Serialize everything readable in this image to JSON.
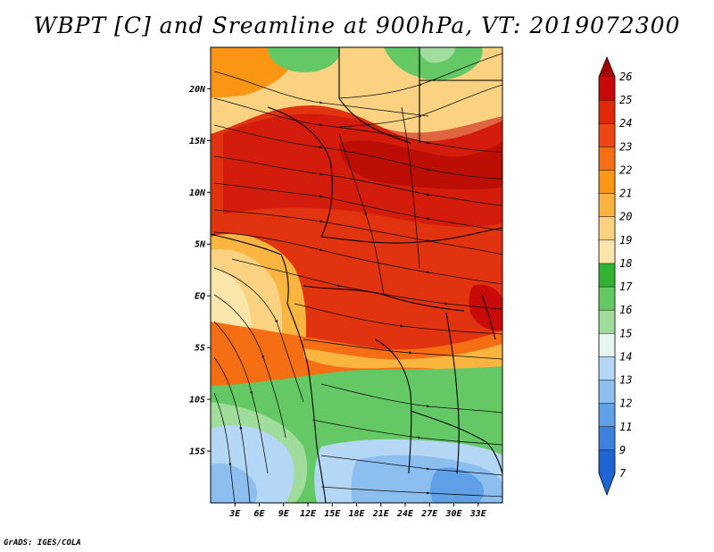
{
  "title": "WBPT [C] and Sreamline at 900hPa, VT: 2019072300",
  "footer": "GrADS: IGES/COLA",
  "map": {
    "lon_range": [
      0,
      36
    ],
    "lat_range": [
      -20,
      24
    ],
    "lat_ticks": [
      {
        "value": 20,
        "label": "20N"
      },
      {
        "value": 15,
        "label": "15N"
      },
      {
        "value": 10,
        "label": "10N"
      },
      {
        "value": 5,
        "label": "5N"
      },
      {
        "value": 0,
        "label": "EQ"
      },
      {
        "value": -5,
        "label": "5S"
      },
      {
        "value": -10,
        "label": "10S"
      },
      {
        "value": -15,
        "label": "15S"
      }
    ],
    "lon_ticks": [
      {
        "value": 3,
        "label": "3E"
      },
      {
        "value": 6,
        "label": "6E"
      },
      {
        "value": 9,
        "label": "9E"
      },
      {
        "value": 12,
        "label": "12E"
      },
      {
        "value": 15,
        "label": "15E"
      },
      {
        "value": 18,
        "label": "18E"
      },
      {
        "value": 21,
        "label": "21E"
      },
      {
        "value": 24,
        "label": "24E"
      },
      {
        "value": 27,
        "label": "27E"
      },
      {
        "value": 30,
        "label": "30E"
      },
      {
        "value": 33,
        "label": "33E"
      }
    ]
  },
  "colorbar": {
    "labels": [
      "26",
      "25",
      "24",
      "23",
      "22",
      "21",
      "20",
      "19",
      "18",
      "17",
      "16",
      "15",
      "14",
      "13",
      "12",
      "11",
      "9",
      "7"
    ],
    "colors": [
      "#a50000",
      "#c80a0a",
      "#e1280a",
      "#f04614",
      "#f56e14",
      "#fa9614",
      "#fab440",
      "#fad282",
      "#fae6aa",
      "#32b432",
      "#64c864",
      "#a0dc9b",
      "#e6f5f0",
      "#b4d7f5",
      "#8cbef0",
      "#5fa0e6",
      "#3c82dc",
      "#1e64d2"
    ]
  }
}
